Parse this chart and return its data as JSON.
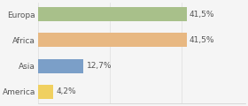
{
  "categories": [
    "Europa",
    "Africa",
    "Asia",
    "America"
  ],
  "values": [
    41.5,
    41.5,
    12.7,
    4.2
  ],
  "labels": [
    "41,5%",
    "41,5%",
    "12,7%",
    "4,2%"
  ],
  "bar_colors": [
    "#a8c08a",
    "#e8b882",
    "#7b9fc8",
    "#f0d060"
  ],
  "background_color": "#f5f5f5",
  "xlim": [
    0,
    58
  ],
  "bar_height": 0.55,
  "label_fontsize": 6.5,
  "category_fontsize": 6.5
}
